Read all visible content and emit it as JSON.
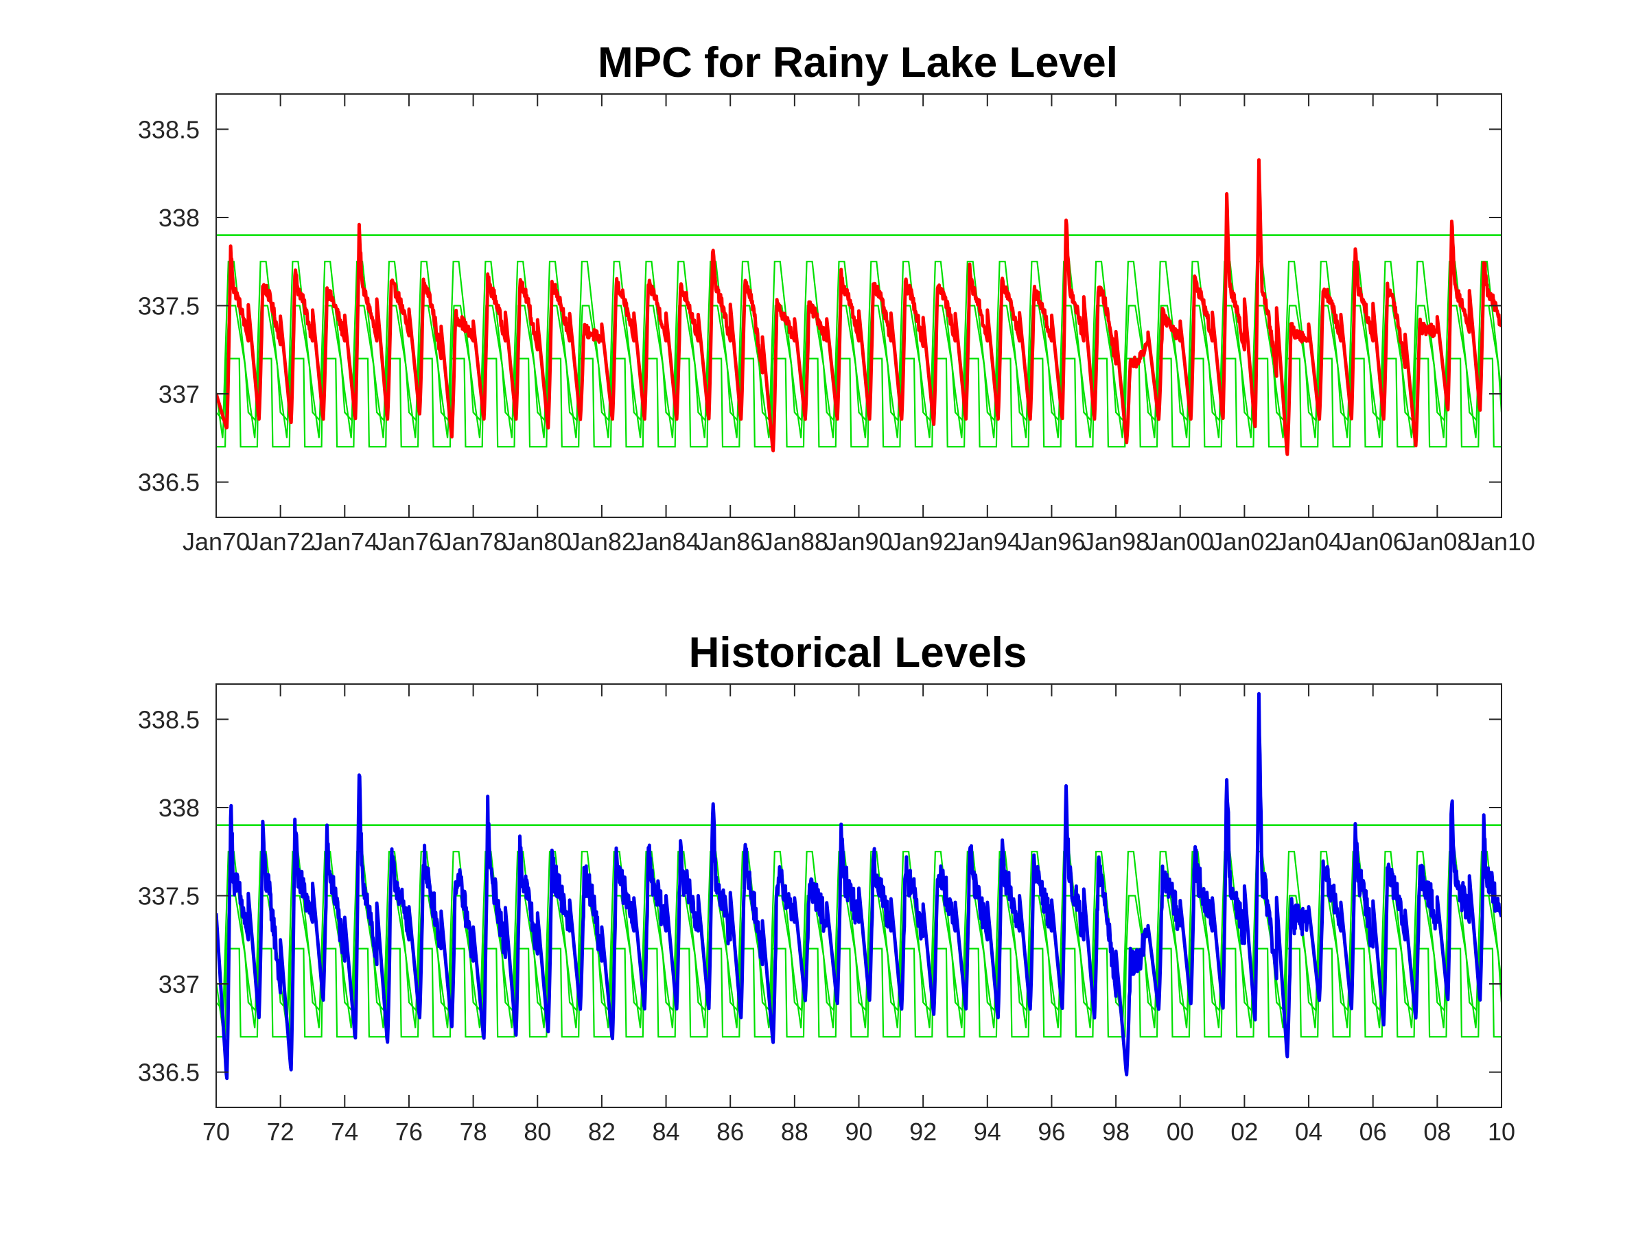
{
  "chart_data": [
    {
      "type": "line",
      "title": "MPC for Rainy Lake Level",
      "xlabel": "",
      "ylabel": "",
      "xlim": [
        1970,
        2010
      ],
      "ylim": [
        336.3,
        338.7
      ],
      "x_ticks": [
        1970,
        1972,
        1974,
        1976,
        1978,
        1980,
        1982,
        1984,
        1986,
        1988,
        1990,
        1992,
        1994,
        1996,
        1998,
        2000,
        2002,
        2004,
        2006,
        2008,
        2010
      ],
      "x_tick_labels": [
        "Jan70",
        "Jan72",
        "Jan74",
        "Jan76",
        "Jan78",
        "Jan80",
        "Jan82",
        "Jan84",
        "Jan86",
        "Jan88",
        "Jan90",
        "Jan92",
        "Jan94",
        "Jan96",
        "Jan98",
        "Jan00",
        "Jan02",
        "Jan04",
        "Jan06",
        "Jan08",
        "Jan10"
      ],
      "y_ticks": [
        336.5,
        337,
        337.5,
        338,
        338.5
      ],
      "y_tick_labels": [
        "336.5",
        "337",
        "337.5",
        "338",
        "338.5"
      ],
      "grid": false,
      "legend": "none",
      "rule_curves": {
        "color": "#00e000",
        "max_level": 337.9,
        "upper_band": {
          "low": 336.85,
          "high": 337.75
        },
        "middle_band": {
          "low": 336.75,
          "high": 337.5
        },
        "lower_band": {
          "low": 336.7,
          "high": 337.2
        }
      },
      "series": [
        {
          "color": "#ff0000",
          "peaks": [
            {
              "year": 1970,
              "peak": 337.82,
              "trough": 336.8
            },
            {
              "year": 1971,
              "peak": 337.62,
              "trough": 336.85
            },
            {
              "year": 1972,
              "peak": 337.7,
              "trough": 336.83
            },
            {
              "year": 1973,
              "peak": 337.58,
              "trough": 336.85
            },
            {
              "year": 1974,
              "peak": 337.95,
              "trough": 336.85
            },
            {
              "year": 1975,
              "peak": 337.63,
              "trough": 336.85
            },
            {
              "year": 1976,
              "peak": 337.63,
              "trough": 336.88
            },
            {
              "year": 1977,
              "peak": 337.45,
              "trough": 336.75
            },
            {
              "year": 1978,
              "peak": 337.65,
              "trough": 336.85
            },
            {
              "year": 1979,
              "peak": 337.63,
              "trough": 336.85
            },
            {
              "year": 1980,
              "peak": 337.62,
              "trough": 336.8
            },
            {
              "year": 1981,
              "peak": 337.38,
              "trough": 336.85
            },
            {
              "year": 1982,
              "peak": 337.63,
              "trough": 336.85
            },
            {
              "year": 1983,
              "peak": 337.63,
              "trough": 336.85
            },
            {
              "year": 1984,
              "peak": 337.6,
              "trough": 336.85
            },
            {
              "year": 1985,
              "peak": 337.83,
              "trough": 336.85
            },
            {
              "year": 1986,
              "peak": 337.63,
              "trough": 336.85
            },
            {
              "year": 1987,
              "peak": 337.5,
              "trough": 336.67
            },
            {
              "year": 1988,
              "peak": 337.5,
              "trough": 336.85
            },
            {
              "year": 1989,
              "peak": 337.68,
              "trough": 336.85
            },
            {
              "year": 1990,
              "peak": 337.63,
              "trough": 336.85
            },
            {
              "year": 1991,
              "peak": 337.62,
              "trough": 336.85
            },
            {
              "year": 1992,
              "peak": 337.62,
              "trough": 336.82
            },
            {
              "year": 1993,
              "peak": 337.7,
              "trough": 336.85
            },
            {
              "year": 1994,
              "peak": 337.64,
              "trough": 336.85
            },
            {
              "year": 1995,
              "peak": 337.58,
              "trough": 336.85
            },
            {
              "year": 1996,
              "peak": 338.0,
              "trough": 336.85
            },
            {
              "year": 1997,
              "peak": 337.6,
              "trough": 336.85
            },
            {
              "year": 1998,
              "peak": 337.2,
              "trough": 336.72
            },
            {
              "year": 1999,
              "peak": 337.45,
              "trough": 336.85
            },
            {
              "year": 2000,
              "peak": 337.65,
              "trough": 336.85
            },
            {
              "year": 2001,
              "peak": 338.1,
              "trough": 336.85
            },
            {
              "year": 2002,
              "peak": 338.35,
              "trough": 336.8
            },
            {
              "year": 2003,
              "peak": 337.38,
              "trough": 336.65
            },
            {
              "year": 2004,
              "peak": 337.6,
              "trough": 336.85
            },
            {
              "year": 2005,
              "peak": 337.85,
              "trough": 336.85
            },
            {
              "year": 2006,
              "peak": 337.6,
              "trough": 336.85
            },
            {
              "year": 2007,
              "peak": 337.4,
              "trough": 336.7
            },
            {
              "year": 2008,
              "peak": 337.99,
              "trough": 336.9
            },
            {
              "year": 2009,
              "peak": 337.77,
              "trough": 336.9
            }
          ],
          "end_value": 337.38
        }
      ]
    },
    {
      "type": "line",
      "title": "Historical Levels",
      "xlabel": "",
      "ylabel": "",
      "xlim": [
        1970,
        2010
      ],
      "ylim": [
        336.3,
        338.7
      ],
      "x_ticks": [
        1970,
        1972,
        1974,
        1976,
        1978,
        1980,
        1982,
        1984,
        1986,
        1988,
        1990,
        1992,
        1994,
        1996,
        1998,
        2000,
        2002,
        2004,
        2006,
        2008,
        2010
      ],
      "x_tick_labels": [
        "70",
        "72",
        "74",
        "76",
        "78",
        "80",
        "82",
        "84",
        "86",
        "88",
        "90",
        "92",
        "94",
        "96",
        "98",
        "00",
        "02",
        "04",
        "06",
        "08",
        "10"
      ],
      "y_ticks": [
        336.5,
        337,
        337.5,
        338,
        338.5
      ],
      "y_tick_labels": [
        "336.5",
        "337",
        "337.5",
        "338",
        "338.5"
      ],
      "grid": false,
      "legend": "none",
      "rule_curves": {
        "color": "#00e000",
        "max_level": 337.9,
        "upper_band": {
          "low": 336.85,
          "high": 337.75
        },
        "middle_band": {
          "low": 336.75,
          "high": 337.5
        },
        "lower_band": {
          "low": 336.7,
          "high": 337.2
        }
      },
      "series": [
        {
          "color": "#0000ee",
          "peaks": [
            {
              "year": 1970,
              "peak": 338.0,
              "trough": 336.45
            },
            {
              "year": 1971,
              "peak": 337.85,
              "trough": 336.8
            },
            {
              "year": 1972,
              "peak": 337.93,
              "trough": 336.5
            },
            {
              "year": 1973,
              "peak": 337.82,
              "trough": 336.9
            },
            {
              "year": 1974,
              "peak": 338.2,
              "trough": 336.68
            },
            {
              "year": 1975,
              "peak": 337.7,
              "trough": 336.66
            },
            {
              "year": 1976,
              "peak": 337.75,
              "trough": 336.8
            },
            {
              "year": 1977,
              "peak": 337.6,
              "trough": 336.75
            },
            {
              "year": 1978,
              "peak": 337.98,
              "trough": 336.68
            },
            {
              "year": 1979,
              "peak": 337.8,
              "trough": 336.7
            },
            {
              "year": 1980,
              "peak": 337.7,
              "trough": 336.72
            },
            {
              "year": 1981,
              "peak": 337.6,
              "trough": 336.85
            },
            {
              "year": 1982,
              "peak": 337.75,
              "trough": 336.68
            },
            {
              "year": 1983,
              "peak": 337.8,
              "trough": 336.85
            },
            {
              "year": 1984,
              "peak": 337.8,
              "trough": 336.85
            },
            {
              "year": 1985,
              "peak": 338.02,
              "trough": 336.85
            },
            {
              "year": 1986,
              "peak": 337.8,
              "trough": 336.8
            },
            {
              "year": 1987,
              "peak": 337.6,
              "trough": 336.66
            },
            {
              "year": 1988,
              "peak": 337.55,
              "trough": 336.9
            },
            {
              "year": 1989,
              "peak": 337.82,
              "trough": 336.88
            },
            {
              "year": 1990,
              "peak": 337.73,
              "trough": 336.9
            },
            {
              "year": 1991,
              "peak": 337.7,
              "trough": 336.85
            },
            {
              "year": 1992,
              "peak": 337.65,
              "trough": 336.82
            },
            {
              "year": 1993,
              "peak": 337.8,
              "trough": 336.85
            },
            {
              "year": 1994,
              "peak": 337.8,
              "trough": 336.8
            },
            {
              "year": 1995,
              "peak": 337.7,
              "trough": 336.85
            },
            {
              "year": 1996,
              "peak": 338.1,
              "trough": 336.85
            },
            {
              "year": 1997,
              "peak": 337.65,
              "trough": 336.8
            },
            {
              "year": 1998,
              "peak": 337.12,
              "trough": 336.48
            },
            {
              "year": 1999,
              "peak": 337.6,
              "trough": 336.85
            },
            {
              "year": 2000,
              "peak": 337.75,
              "trough": 336.88
            },
            {
              "year": 2001,
              "peak": 338.23,
              "trough": 336.85
            },
            {
              "year": 2002,
              "peak": 338.57,
              "trough": 336.78
            },
            {
              "year": 2003,
              "peak": 337.4,
              "trough": 336.58
            },
            {
              "year": 2004,
              "peak": 337.65,
              "trough": 336.9
            },
            {
              "year": 2005,
              "peak": 337.95,
              "trough": 336.85
            },
            {
              "year": 2006,
              "peak": 337.62,
              "trough": 336.76
            },
            {
              "year": 2007,
              "peak": 337.62,
              "trough": 336.8
            },
            {
              "year": 2008,
              "peak": 338.1,
              "trough": 336.9
            },
            {
              "year": 2009,
              "peak": 337.87,
              "trough": 336.9
            }
          ],
          "start_value": 337.4,
          "end_value": 337.38
        }
      ]
    }
  ]
}
